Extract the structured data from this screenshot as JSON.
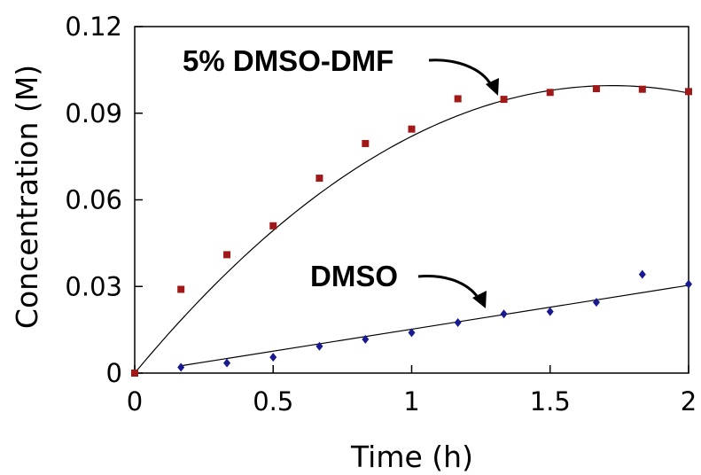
{
  "chart_data": {
    "type": "scatter",
    "xlabel": "Time (h)",
    "ylabel": "Concentration (M)",
    "xlim": [
      0,
      2
    ],
    "ylim": [
      0,
      0.12
    ],
    "x_ticks": [
      "0",
      "0.5",
      "1",
      "1.5",
      "2"
    ],
    "y_ticks": [
      "0",
      "0.03",
      "0.06",
      "0.09",
      "0.12"
    ],
    "grid": false,
    "series": [
      {
        "name": "5% DMSO-DMF",
        "color": "#a01818",
        "marker": "square",
        "points": [
          [
            0,
            0
          ],
          [
            0.167,
            0.029
          ],
          [
            0.333,
            0.041
          ],
          [
            0.5,
            0.051
          ],
          [
            0.667,
            0.0675
          ],
          [
            0.833,
            0.0795
          ],
          [
            1.0,
            0.0845
          ],
          [
            1.167,
            0.095
          ],
          [
            1.333,
            0.0948
          ],
          [
            1.5,
            0.0972
          ],
          [
            1.667,
            0.0985
          ],
          [
            1.833,
            0.0983
          ],
          [
            2.0,
            0.0975
          ]
        ],
        "fit": {
          "type": "polynomial",
          "coeffs": [
            0,
            0.1155,
            -0.0335
          ]
        }
      },
      {
        "name": "DMSO",
        "color": "#1a1a90",
        "marker": "diamond",
        "points": [
          [
            0.167,
            0.002
          ],
          [
            0.333,
            0.0035
          ],
          [
            0.5,
            0.0055
          ],
          [
            0.667,
            0.0093
          ],
          [
            0.833,
            0.0117
          ],
          [
            1.0,
            0.014
          ],
          [
            1.167,
            0.0175
          ],
          [
            1.333,
            0.0205
          ],
          [
            1.5,
            0.0213
          ],
          [
            1.667,
            0.0245
          ],
          [
            1.833,
            0.0342
          ],
          [
            2.0,
            0.0308
          ]
        ],
        "fit": {
          "type": "linear",
          "coeffs": [
            0.0,
            0.0152
          ]
        }
      }
    ],
    "annotations": [
      {
        "text": "5% DMSO-DMF",
        "target_series": "5% DMSO-DMF"
      },
      {
        "text": "DMSO",
        "target_series": "DMSO"
      }
    ]
  }
}
